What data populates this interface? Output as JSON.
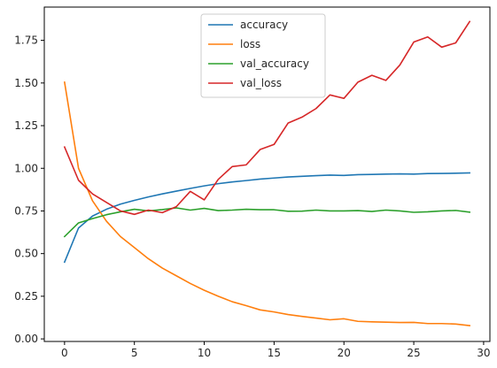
{
  "chart_data": {
    "type": "line",
    "title": "",
    "xlabel": "",
    "ylabel": "",
    "xlim": [
      -1.45,
      30.45
    ],
    "ylim": [
      -0.015,
      1.945
    ],
    "xticks": [
      0,
      5,
      10,
      15,
      20,
      25,
      30
    ],
    "xtick_labels": [
      "0",
      "5",
      "10",
      "15",
      "20",
      "25",
      "30"
    ],
    "yticks": [
      0.0,
      0.25,
      0.5,
      0.75,
      1.0,
      1.25,
      1.5,
      1.75
    ],
    "ytick_labels": [
      "0.00",
      "0.25",
      "0.50",
      "0.75",
      "1.00",
      "1.25",
      "1.50",
      "1.75"
    ],
    "grid": false,
    "legend_position": "upper-center",
    "x": [
      0,
      1,
      2,
      3,
      4,
      5,
      6,
      7,
      8,
      9,
      10,
      11,
      12,
      13,
      14,
      15,
      16,
      17,
      18,
      19,
      20,
      21,
      22,
      23,
      24,
      25,
      26,
      27,
      28,
      29
    ],
    "series": [
      {
        "name": "accuracy",
        "color": "#1f77b4",
        "values": [
          0.45,
          0.65,
          0.72,
          0.76,
          0.79,
          0.812,
          0.832,
          0.85,
          0.866,
          0.882,
          0.897,
          0.91,
          0.92,
          0.928,
          0.937,
          0.943,
          0.949,
          0.953,
          0.957,
          0.96,
          0.958,
          0.963,
          0.964,
          0.966,
          0.967,
          0.966,
          0.969,
          0.97,
          0.971,
          0.973
        ]
      },
      {
        "name": "loss",
        "color": "#ff7f0e",
        "values": [
          1.505,
          1.0,
          0.81,
          0.69,
          0.6,
          0.535,
          0.47,
          0.415,
          0.37,
          0.325,
          0.285,
          0.25,
          0.218,
          0.195,
          0.17,
          0.158,
          0.143,
          0.132,
          0.122,
          0.112,
          0.118,
          0.103,
          0.1,
          0.098,
          0.096,
          0.097,
          0.09,
          0.09,
          0.087,
          0.078
        ]
      },
      {
        "name": "val_accuracy",
        "color": "#2ca02c",
        "values": [
          0.6,
          0.68,
          0.705,
          0.728,
          0.745,
          0.76,
          0.75,
          0.758,
          0.768,
          0.755,
          0.765,
          0.752,
          0.755,
          0.76,
          0.757,
          0.757,
          0.748,
          0.749,
          0.755,
          0.75,
          0.75,
          0.752,
          0.747,
          0.755,
          0.75,
          0.742,
          0.745,
          0.75,
          0.753,
          0.743
        ]
      },
      {
        "name": "val_loss",
        "color": "#d62728",
        "values": [
          1.125,
          0.93,
          0.85,
          0.8,
          0.75,
          0.73,
          0.755,
          0.74,
          0.775,
          0.865,
          0.815,
          0.935,
          1.01,
          1.02,
          1.11,
          1.14,
          1.265,
          1.3,
          1.35,
          1.43,
          1.41,
          1.505,
          1.545,
          1.515,
          1.605,
          1.74,
          1.77,
          1.71,
          1.735,
          1.86
        ]
      }
    ]
  }
}
